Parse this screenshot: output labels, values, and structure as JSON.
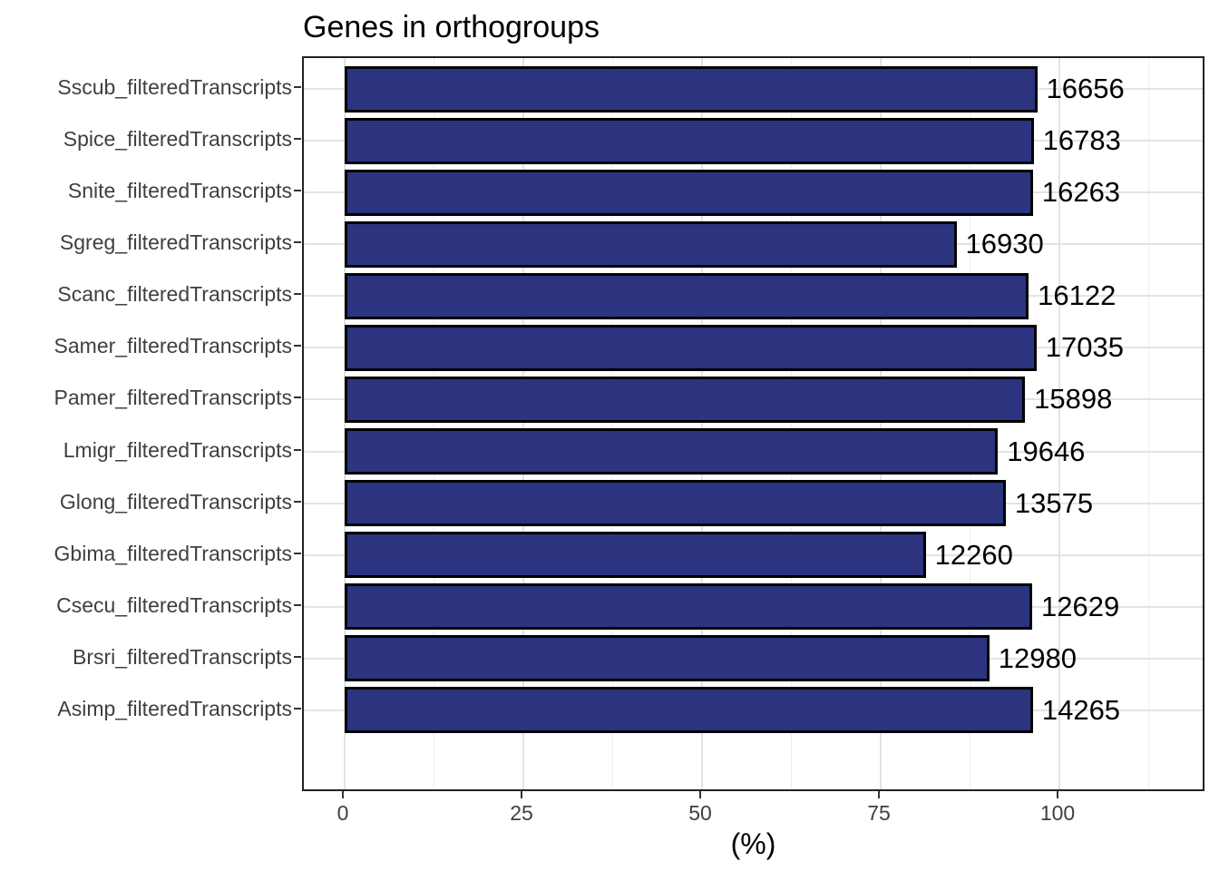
{
  "title": "Genes in orthogroups",
  "chart_data": {
    "type": "bar",
    "orientation": "horizontal",
    "title": "Genes in orthogroups",
    "xlabel": "(%)",
    "ylabel": "",
    "xlim": [
      0,
      100
    ],
    "x_ticks": [
      0,
      25,
      50,
      75,
      100
    ],
    "x_minor_gridlines": [
      12.5,
      37.5,
      62.5,
      87.5,
      112.5
    ],
    "grid": true,
    "legend": "none",
    "categories": [
      "Sscub_filteredTranscripts",
      "Spice_filteredTranscripts",
      "Snite_filteredTranscripts",
      "Sgreg_filteredTranscripts",
      "Scanc_filteredTranscripts",
      "Samer_filteredTranscripts",
      "Pamer_filteredTranscripts",
      "Lmigr_filteredTranscripts",
      "Glong_filteredTranscripts",
      "Gbima_filteredTranscripts",
      "Csecu_filteredTranscripts",
      "Brsri_filteredTranscripts",
      "Asimp_filteredTranscripts"
    ],
    "values_percent": [
      96.9,
      96.4,
      96.3,
      85.6,
      95.7,
      96.8,
      95.2,
      91.4,
      92.5,
      81.3,
      96.2,
      90.2,
      96.3
    ],
    "bar_labels": [
      "16656",
      "16783",
      "16263",
      "16930",
      "16122",
      "17035",
      "15898",
      "19646",
      "13575",
      "12260",
      "12629",
      "12980",
      "14265"
    ],
    "colors": {
      "bar_fill": "#2c3480",
      "bar_stroke": "#000000",
      "grid_major": "#e3e3e3",
      "grid_minor": "#ededed",
      "panel_border": "#222222",
      "axis_text": "#3f3f3f",
      "tick": "#333333",
      "label_text": "#000000"
    }
  }
}
